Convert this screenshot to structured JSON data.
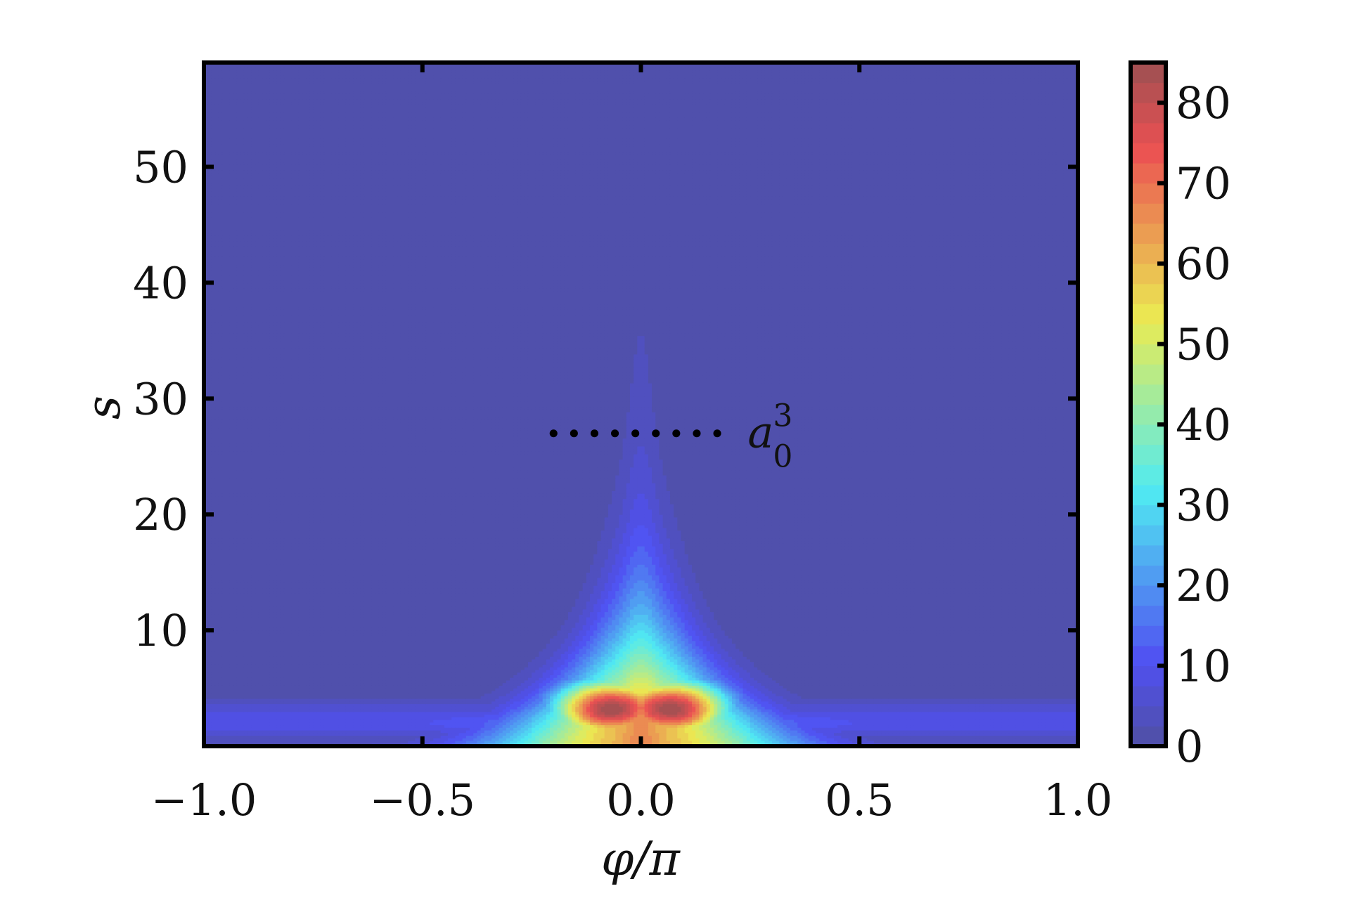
{
  "chart_data": {
    "type": "heatmap",
    "title": "",
    "xlabel": "φ/π",
    "ylabel": "s",
    "xlim": [
      -1.0,
      1.0
    ],
    "ylim": [
      0,
      59
    ],
    "xticks": [
      {
        "value": -1.0,
        "label": "−1.0"
      },
      {
        "value": -0.5,
        "label": "−0.5"
      },
      {
        "value": 0.0,
        "label": "0.0"
      },
      {
        "value": 0.5,
        "label": "0.5"
      },
      {
        "value": 1.0,
        "label": "1.0"
      }
    ],
    "yticks": [
      {
        "value": 10,
        "label": "10"
      },
      {
        "value": 20,
        "label": "20"
      },
      {
        "value": 30,
        "label": "30"
      },
      {
        "value": 40,
        "label": "40"
      },
      {
        "value": 50,
        "label": "50"
      }
    ],
    "colorbar": {
      "range": [
        0,
        85
      ],
      "ticks": [
        {
          "value": 0,
          "label": "0"
        },
        {
          "value": 10,
          "label": "10"
        },
        {
          "value": 20,
          "label": "20"
        },
        {
          "value": 30,
          "label": "30"
        },
        {
          "value": 40,
          "label": "40"
        },
        {
          "value": 50,
          "label": "50"
        },
        {
          "value": 60,
          "label": "60"
        },
        {
          "value": 70,
          "label": "70"
        },
        {
          "value": 80,
          "label": "80"
        }
      ],
      "colormap": "jet",
      "levels": 34
    },
    "field": {
      "description_values": "intensity peaks near φ/π = ±0.07 at s ≈ 3 with value ≈ 85, narrow ridge along φ = 0 extending to s ≈ 59",
      "peak_value": 85,
      "peak_positions": [
        [
          -0.07,
          3.0
        ],
        [
          0.07,
          3.0
        ]
      ]
    },
    "annotation": {
      "line_y": 27,
      "line_x": [
        -0.2,
        0.18
      ],
      "label_base": "a",
      "label_sub": "0",
      "label_sup": "3"
    }
  }
}
